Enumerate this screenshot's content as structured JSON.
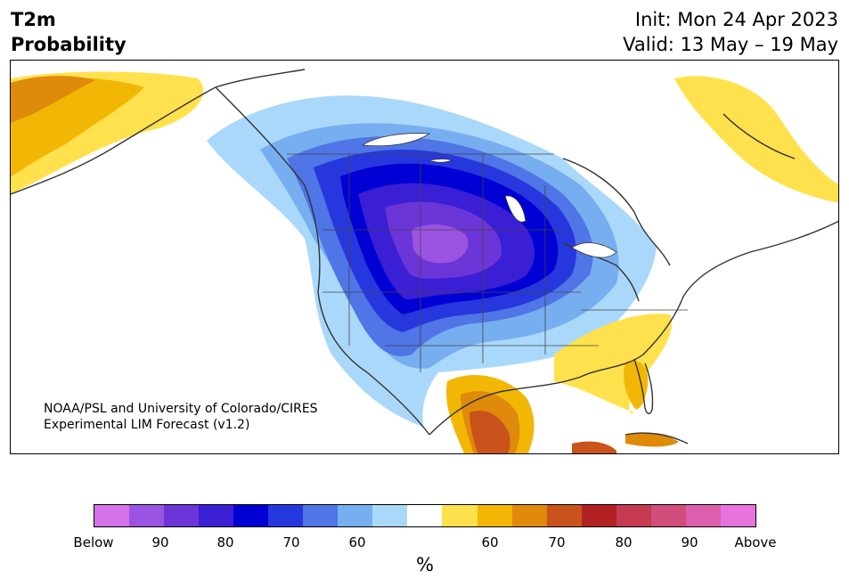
{
  "title": {
    "line1": "T2m",
    "line2": "Probability"
  },
  "dates": {
    "init": "Init: Mon 24 Apr 2023",
    "valid": "Valid: 13 May – 19 May"
  },
  "credit": {
    "line1": "NOAA/PSL and University of Colorado/CIRES",
    "line2": "Experimental LIM Forecast (v1.2)"
  },
  "colorbar": {
    "colors": [
      "#d472ea",
      "#9b54e2",
      "#6c35d8",
      "#3a1fd5",
      "#0000d4",
      "#2638dd",
      "#4f75e6",
      "#77aef0",
      "#aad8fa",
      "#ffffff",
      "#ffe14d",
      "#f2b705",
      "#e08a0c",
      "#c9531a",
      "#b22222",
      "#c63a52",
      "#d14d7c",
      "#dc5fae",
      "#e774dc"
    ],
    "labels": [
      "Below",
      "90",
      "80",
      "70",
      "60",
      "60",
      "70",
      "80",
      "90",
      "Above"
    ],
    "unit": "%"
  },
  "map": {
    "region": "North America",
    "coastline_color": "#333333",
    "land_color": "#ffffff"
  }
}
